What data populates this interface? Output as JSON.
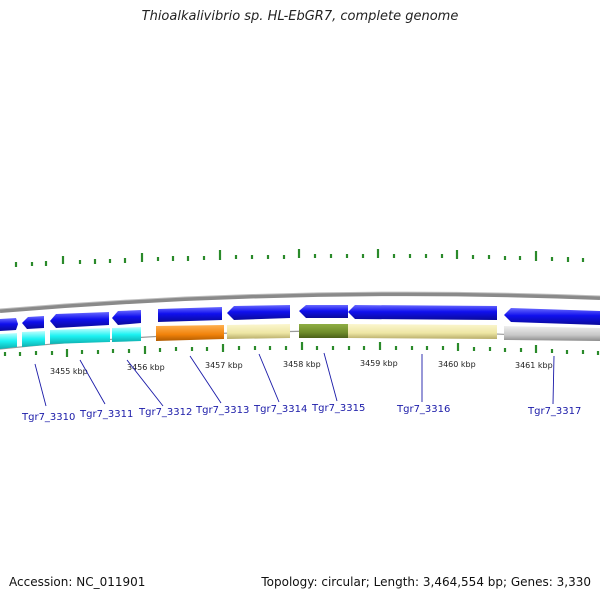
{
  "title": "Thioalkalivibrio sp. HL-EbGR7, complete genome",
  "accession": "Accession: NC_011901",
  "summary": "Topology: circular; Length: 3,464,554 bp; Genes: 3,330",
  "kbp_labels": [
    "3455 kbp",
    "3456 kbp",
    "3457 kbp",
    "3458 kbp",
    "3459 kbp",
    "3460 kbp",
    "3461 kbp"
  ],
  "gene_labels": [
    "Tgr7_3310",
    "Tgr7_3311",
    "Tgr7_3312",
    "Tgr7_3313",
    "Tgr7_3314",
    "Tgr7_3315",
    "Tgr7_3316",
    "Tgr7_3317"
  ],
  "colors": {
    "cds_blue": "#1010ee",
    "cyan": "#1cf2f2",
    "orange": "#f0820a",
    "khaki": "#eee6a4",
    "olive": "#6f8c2a",
    "grey": "#c8c8c8",
    "tick_green": "#2a8a2a",
    "label_blue": "#1a1aa8"
  }
}
